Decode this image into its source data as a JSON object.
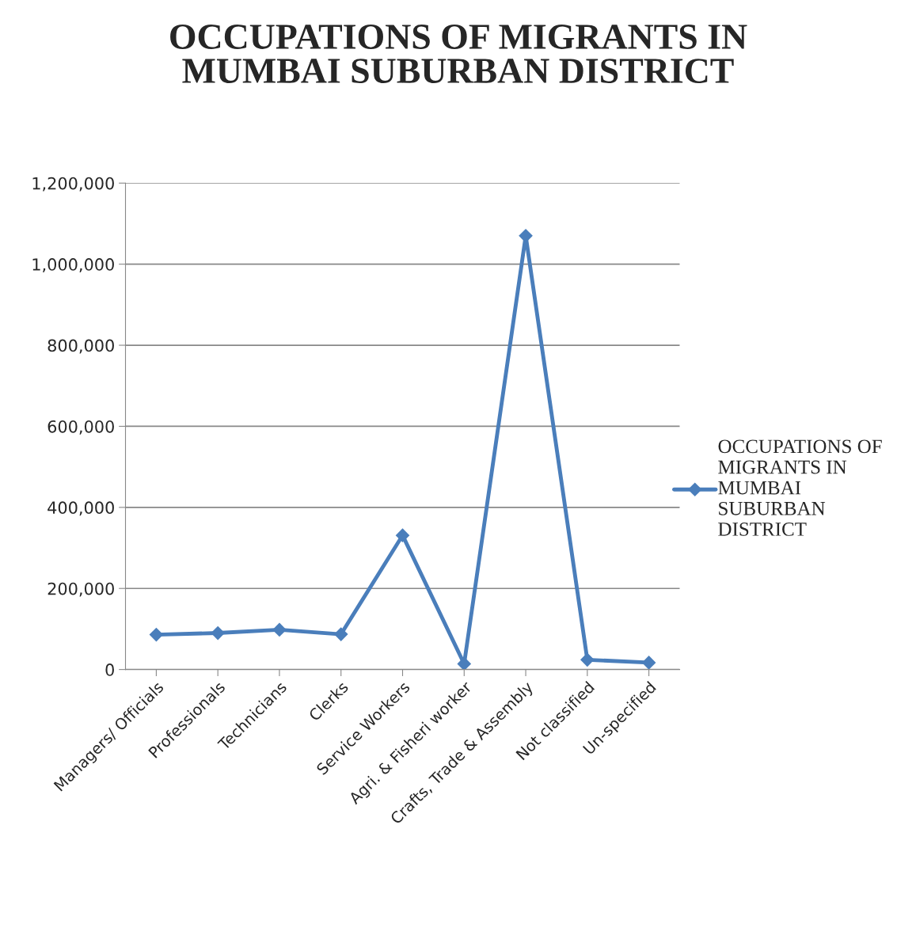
{
  "chart_data": {
    "type": "line",
    "title": "OCCUPATIONS OF MIGRANTS IN MUMBAI SUBURBAN DISTRICT",
    "categories": [
      "Managers/ Officials",
      "Professionals",
      "Technicians",
      "Clerks",
      "Service Workers",
      "Agri. & Fisheri worker",
      "Crafts, Trade & Assembly",
      "Not classified",
      "Un-specified"
    ],
    "series": [
      {
        "name": "OCCUPATIONS OF MIGRANTS IN MUMBAI SUBURBAN DISTRICT",
        "color": "#4a7ebb",
        "values": [
          86000,
          90000,
          98000,
          87000,
          331000,
          14000,
          1070000,
          24000,
          17000
        ]
      }
    ],
    "ylim": [
      0,
      1200000
    ],
    "yticks": [
      {
        "value": 0,
        "label": "0"
      },
      {
        "value": 200000,
        "label": "200,000"
      },
      {
        "value": 400000,
        "label": "400,000"
      },
      {
        "value": 600000,
        "label": "600,000"
      },
      {
        "value": 800000,
        "label": "800,000"
      },
      {
        "value": 1000000,
        "label": "1,000,000"
      },
      {
        "value": 1200000,
        "label": "1,200,000"
      }
    ],
    "grid": "y",
    "legend": "right",
    "marker": "diamond",
    "line_style": "solid"
  }
}
